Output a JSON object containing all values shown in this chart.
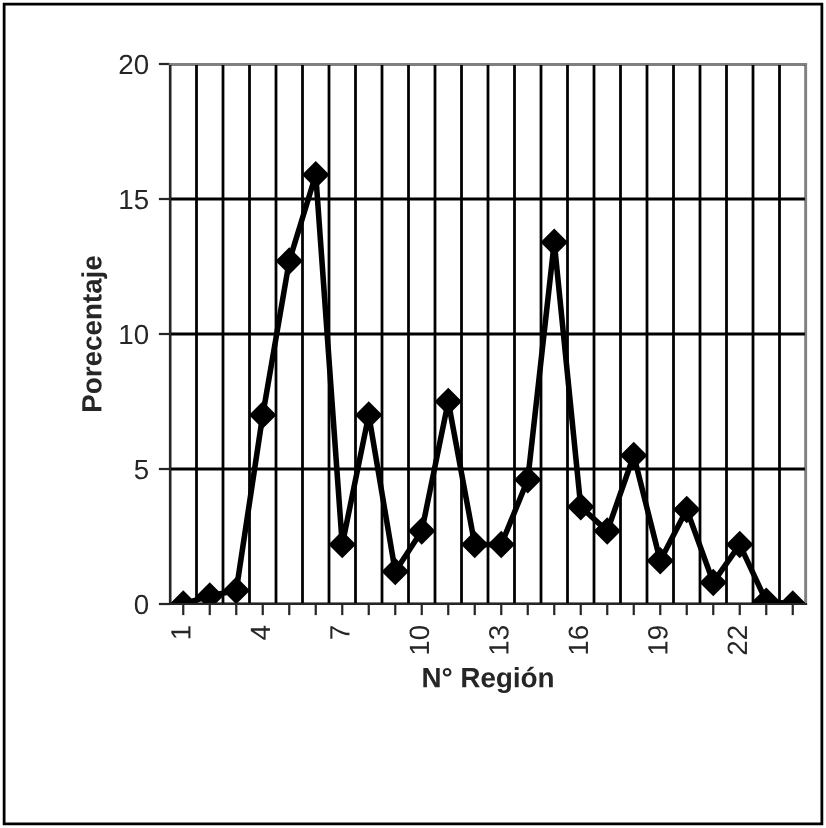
{
  "chart_data": {
    "type": "line",
    "xlabel": "N° Región",
    "ylabel": "Porecentaje",
    "categories": [
      "1",
      null,
      null,
      "4",
      null,
      null,
      "7",
      null,
      null,
      "10",
      null,
      null,
      "13",
      null,
      null,
      "16",
      null,
      null,
      "19",
      null,
      null,
      "22",
      null,
      null
    ],
    "series": [
      {
        "color": "#000000",
        "values": [
          0,
          0.3,
          0.5,
          7.0,
          12.7,
          15.9,
          2.2,
          7.0,
          1.2,
          2.7,
          7.5,
          2.2,
          2.2,
          4.6,
          13.4,
          3.6,
          2.7,
          5.5,
          1.6,
          3.5,
          0.8,
          2.2,
          0.1,
          0
        ]
      }
    ],
    "ylim": [
      0,
      20
    ],
    "yticks": [
      0,
      5,
      10,
      15,
      20
    ],
    "grid": true,
    "marker": "diamond",
    "line_style": "solid"
  }
}
